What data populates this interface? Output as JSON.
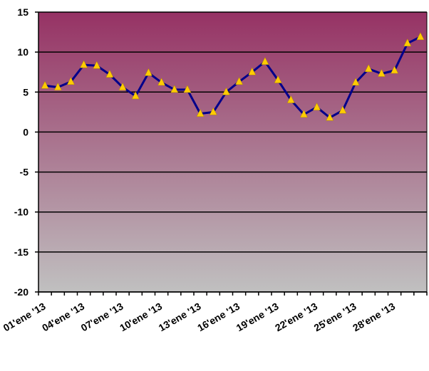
{
  "chart_data": {
    "type": "line",
    "title": "",
    "xlabel": "",
    "ylabel": "",
    "ylim": [
      -20,
      15
    ],
    "y_ticks": [
      "15",
      "10",
      "5",
      "0",
      "-5",
      "-10",
      "-15",
      "-20"
    ],
    "x_tick_labels": [
      "01'ene '13",
      "04'ene '13",
      "07'ene '13",
      "10'ene '13",
      "13'ene '13",
      "16'ene '13",
      "19'ene '13",
      "22'ene '13",
      "25'ene '13",
      "28'ene '13"
    ],
    "grid": true,
    "legend": "none",
    "series": [
      {
        "values": [
          5.8,
          5.6,
          6.3,
          8.4,
          8.3,
          7.2,
          5.6,
          4.5,
          7.4,
          6.2,
          5.3,
          5.3,
          2.3,
          2.5,
          5.0,
          6.3,
          7.5,
          8.8,
          6.5,
          4.0,
          2.2,
          3.1,
          1.8,
          2.7,
          6.2,
          7.9,
          7.3,
          7.7,
          11.1,
          11.9
        ],
        "line_color": "#00008B",
        "marker_color": "#FFCC00",
        "marker": "triangle"
      }
    ],
    "background_gradient": [
      "#963264",
      "#c0c0c0"
    ]
  }
}
